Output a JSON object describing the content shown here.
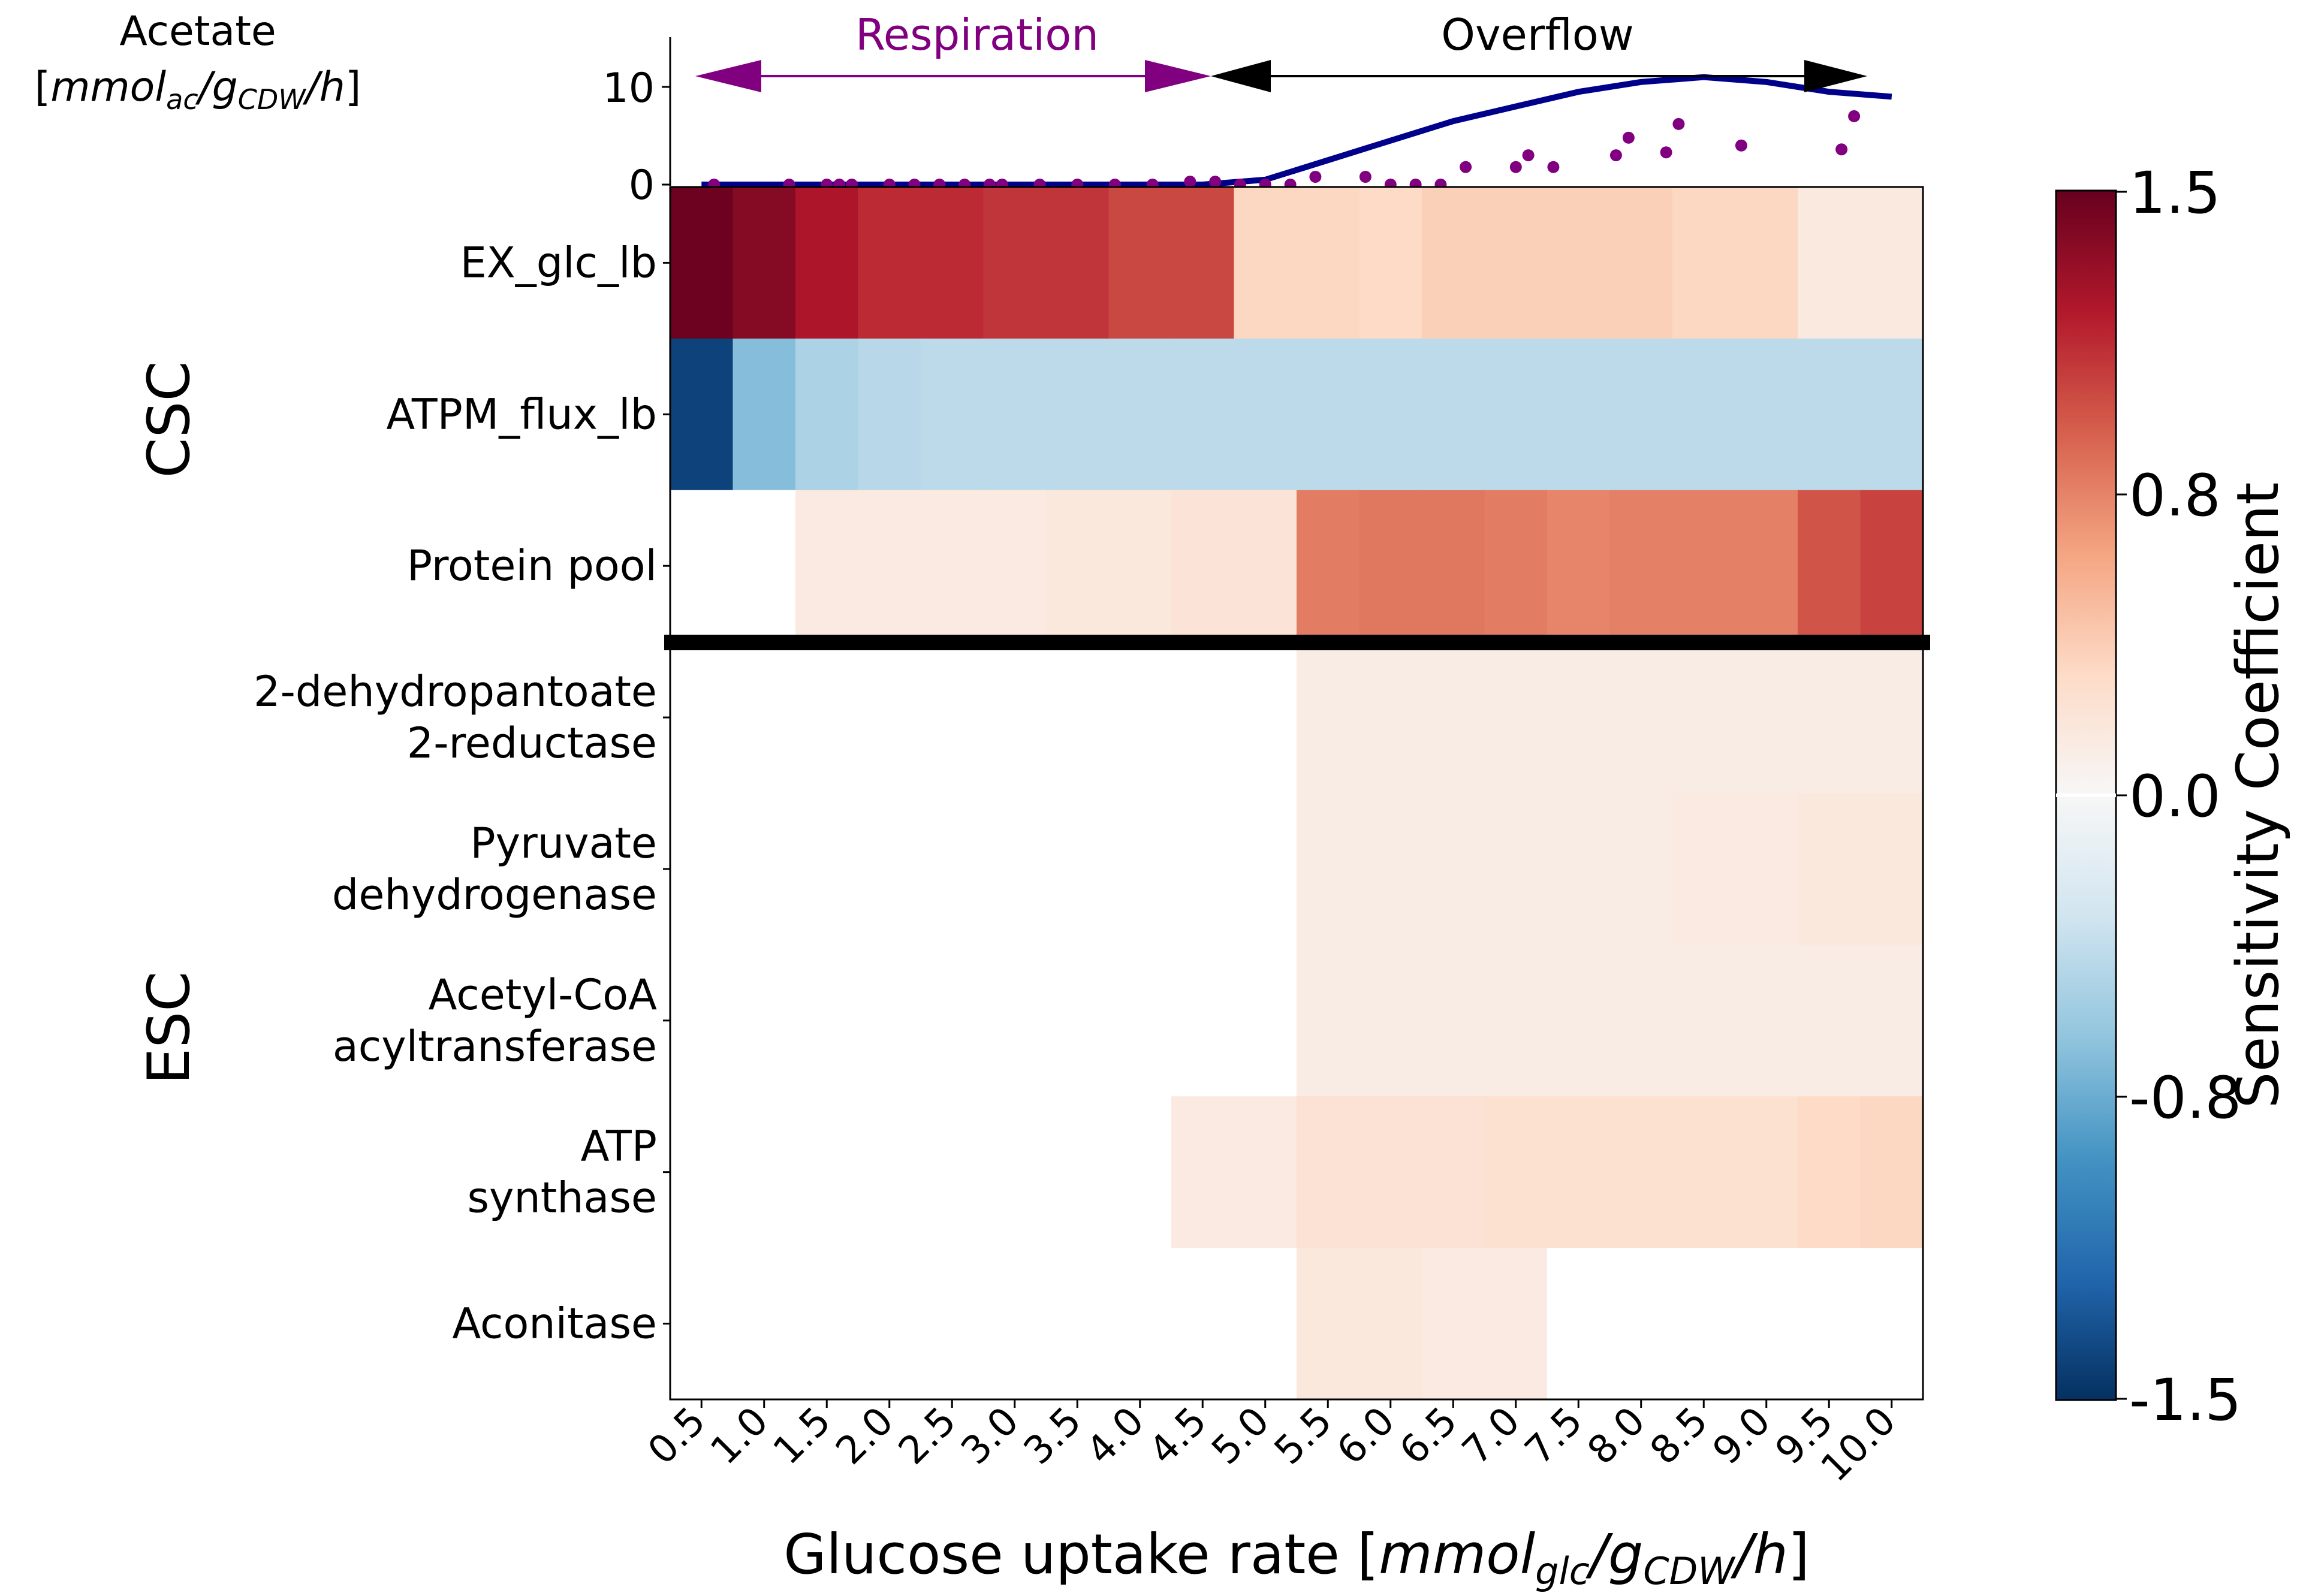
{
  "chart_data": [
    {
      "type": "heatmap",
      "title": "",
      "xlabel": "Glucose uptake rate [mmolglc/gCDW/h]",
      "xlabel_parts": {
        "main": "Glucose uptake rate [",
        "sym1": "mmol",
        "sub1": "glc",
        "slash1": "/",
        "sym2": "g",
        "sub2": "CDW",
        "slash2": "/",
        "sym3": "h",
        "close": "]"
      },
      "x_categories": [
        "0.5",
        "1.0",
        "1.5",
        "2.0",
        "2.5",
        "3.0",
        "3.5",
        "4.0",
        "4.5",
        "5.0",
        "5.5",
        "6.0",
        "6.5",
        "7.0",
        "7.5",
        "8.0",
        "8.5",
        "9.0",
        "9.5",
        "10.0"
      ],
      "row_groups": [
        {
          "name": "CSC",
          "rows": [
            "EX_glc_lb",
            "ATPM_flux_lb",
            "Protein pool"
          ]
        },
        {
          "name": "ESC",
          "rows": [
            "2-dehydropantoate 2-reductase",
            "Pyruvate dehydrogenase",
            "Acetyl-CoA acyltransferase",
            "ATP synthase",
            "Aconitase"
          ]
        }
      ],
      "row_label_lines": [
        [
          "EX_glc_lb"
        ],
        [
          "ATPM_flux_lb"
        ],
        [
          "Protein pool"
        ],
        [
          "2-dehydropantoate",
          "2-reductase"
        ],
        [
          "Pyruvate",
          "dehydrogenase"
        ],
        [
          "Acetyl-CoA",
          "acyltransferase"
        ],
        [
          "ATP",
          "synthase"
        ],
        [
          "Aconitase"
        ]
      ],
      "values": [
        [
          1.48,
          1.38,
          1.22,
          1.12,
          1.12,
          1.08,
          1.08,
          1.0,
          1.0,
          0.32,
          0.32,
          0.3,
          0.36,
          0.36,
          0.36,
          0.36,
          0.32,
          0.32,
          0.15,
          0.15
        ],
        [
          -1.4,
          -0.65,
          -0.48,
          -0.42,
          -0.4,
          -0.4,
          -0.4,
          -0.4,
          -0.4,
          -0.4,
          -0.4,
          -0.4,
          -0.4,
          -0.4,
          -0.4,
          -0.4,
          -0.4,
          -0.4,
          -0.4,
          -0.4
        ],
        [
          0.0,
          0.0,
          0.14,
          0.14,
          0.14,
          0.14,
          0.16,
          0.16,
          0.2,
          0.2,
          0.78,
          0.8,
          0.8,
          0.78,
          0.74,
          0.76,
          0.76,
          0.76,
          0.95,
          1.02
        ],
        [
          0.0,
          0.0,
          0.0,
          0.0,
          0.0,
          0.0,
          0.0,
          0.0,
          0.0,
          0.0,
          0.12,
          0.12,
          0.12,
          0.12,
          0.12,
          0.12,
          0.12,
          0.12,
          0.12,
          0.12
        ],
        [
          0.0,
          0.0,
          0.0,
          0.0,
          0.0,
          0.0,
          0.0,
          0.0,
          0.0,
          0.0,
          0.12,
          0.12,
          0.12,
          0.12,
          0.12,
          0.12,
          0.14,
          0.14,
          0.16,
          0.16
        ],
        [
          0.0,
          0.0,
          0.0,
          0.0,
          0.0,
          0.0,
          0.0,
          0.0,
          0.0,
          0.0,
          0.12,
          0.12,
          0.12,
          0.12,
          0.12,
          0.12,
          0.12,
          0.12,
          0.12,
          0.12
        ],
        [
          0.0,
          0.0,
          0.0,
          0.0,
          0.0,
          0.0,
          0.0,
          0.0,
          0.14,
          0.14,
          0.22,
          0.22,
          0.22,
          0.24,
          0.24,
          0.24,
          0.24,
          0.24,
          0.3,
          0.32
        ],
        [
          0.0,
          0.0,
          0.0,
          0.0,
          0.0,
          0.0,
          0.0,
          0.0,
          0.0,
          0.0,
          0.16,
          0.16,
          0.14,
          0.14,
          0.0,
          0.0,
          0.0,
          0.0,
          0.0,
          0.0
        ]
      ],
      "colorbar": {
        "label": "Sensitivity Coefficient",
        "range": [
          -1.5,
          1.5
        ],
        "ticks": [
          "1.5",
          "0.8",
          "0.0",
          "-0.8",
          "-1.5"
        ],
        "colormap": "RdBu_r"
      },
      "grid": false
    },
    {
      "type": "line",
      "title": "",
      "ylabel_lines": [
        "Acetate",
        "[mmolac/gCDW/h]"
      ],
      "ylabel_parts": {
        "open": "[",
        "sym1": "mmol",
        "sub1": "ac",
        "slash1": "/",
        "sym2": "g",
        "sub2": "CDW",
        "slash2": "/",
        "sym3": "h",
        "close": "]"
      },
      "ylim": [
        0,
        15
      ],
      "yticks": [
        "0",
        "10"
      ],
      "x": [
        0.5,
        1.0,
        1.5,
        2.0,
        2.5,
        3.0,
        3.5,
        4.0,
        4.5,
        5.0,
        5.5,
        6.0,
        6.5,
        7.0,
        7.5,
        8.0,
        8.5,
        9.0,
        9.5,
        10.0
      ],
      "series": [
        {
          "values": [
            0,
            0,
            0,
            0,
            0,
            0,
            0,
            0,
            0,
            0.5,
            2.5,
            4.5,
            6.5,
            8,
            9.5,
            10.5,
            11,
            10.5,
            9.5,
            9
          ],
          "color": "#00008b",
          "kind": "line"
        },
        {
          "points": [
            [
              0.6,
              0
            ],
            [
              1.2,
              0
            ],
            [
              1.5,
              0
            ],
            [
              1.6,
              0
            ],
            [
              1.7,
              0
            ],
            [
              2.0,
              0
            ],
            [
              2.2,
              0
            ],
            [
              2.4,
              0
            ],
            [
              2.6,
              0
            ],
            [
              2.8,
              0
            ],
            [
              2.9,
              0
            ],
            [
              3.2,
              0
            ],
            [
              3.5,
              0
            ],
            [
              3.8,
              0
            ],
            [
              4.1,
              0
            ],
            [
              4.4,
              0.3
            ],
            [
              4.6,
              0.3
            ],
            [
              4.8,
              0
            ],
            [
              5.0,
              0
            ],
            [
              5.2,
              0
            ],
            [
              5.4,
              0.8
            ],
            [
              5.8,
              0.8
            ],
            [
              6.0,
              0
            ],
            [
              6.2,
              0
            ],
            [
              6.4,
              0
            ],
            [
              6.6,
              1.8
            ],
            [
              7.0,
              1.8
            ],
            [
              7.1,
              3
            ],
            [
              7.3,
              1.8
            ],
            [
              7.8,
              3
            ],
            [
              7.9,
              4.8
            ],
            [
              8.2,
              3.3
            ],
            [
              8.3,
              6.2
            ],
            [
              8.8,
              4
            ],
            [
              9.6,
              3.6
            ],
            [
              9.7,
              7
            ]
          ],
          "color": "#800080",
          "kind": "scatter"
        }
      ],
      "annotations": [
        {
          "text": "Respiration",
          "color": "#800080",
          "from": 0.5,
          "to": 4.5
        },
        {
          "text": "Overflow",
          "color": "#000000",
          "from": 4.5,
          "to": 9.5
        }
      ]
    }
  ]
}
